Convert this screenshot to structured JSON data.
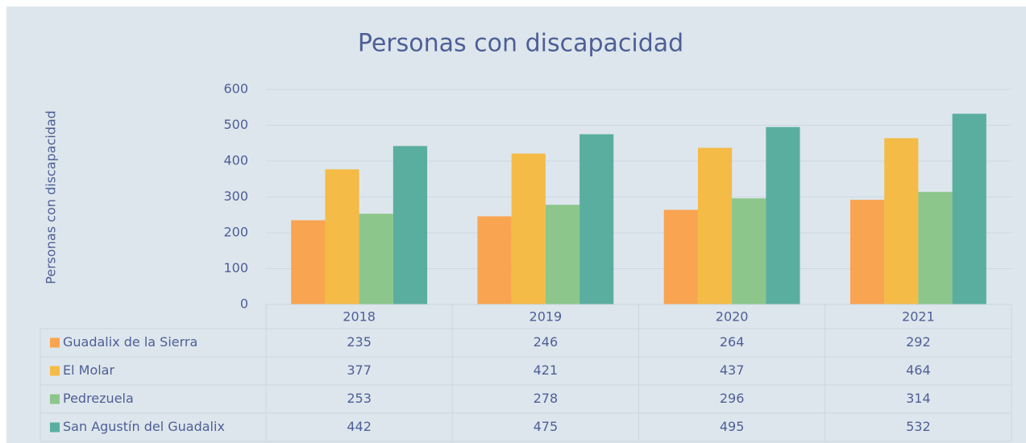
{
  "chart_data": {
    "type": "bar",
    "title": "Personas con discapacidad",
    "y_label": "Personas con discapacidad",
    "categories": [
      "2018",
      "2019",
      "2020",
      "2021"
    ],
    "series": [
      {
        "name": "Guadalix de la Sierra",
        "color": "#f9a451",
        "values": [
          235,
          246,
          264,
          292
        ]
      },
      {
        "name": "El Molar",
        "color": "#f4bb47",
        "values": [
          377,
          421,
          437,
          464
        ]
      },
      {
        "name": "Pedrezuela",
        "color": "#8cc68a",
        "values": [
          253,
          278,
          296,
          314
        ]
      },
      {
        "name": "San Agustín del Guadalix",
        "color": "#5aaea0",
        "values": [
          442,
          475,
          495,
          532
        ]
      }
    ],
    "ylim": [
      0,
      600
    ],
    "yticks": [
      0,
      100,
      200,
      300,
      400,
      500,
      600
    ],
    "grid": true,
    "data_table": true
  }
}
